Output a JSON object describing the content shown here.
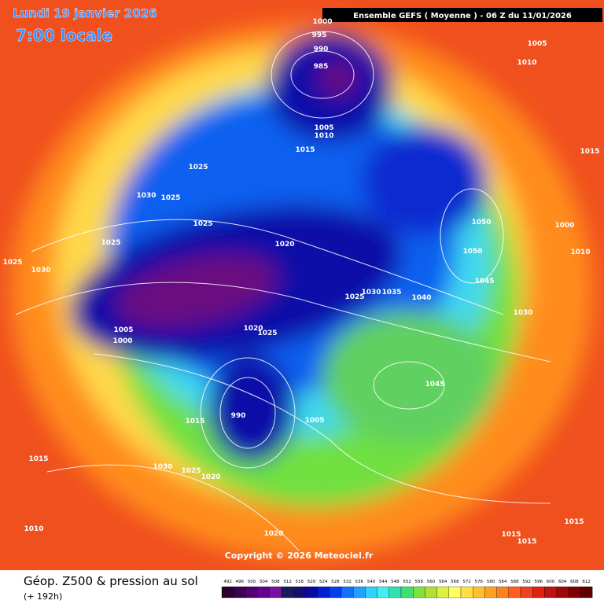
{
  "header": {
    "date": "Lundi 19 janvier 2026",
    "time": "7:00 locale",
    "model": "Ensemble GEFS  ( Moyenne )  -  06 Z du 11/01/2026"
  },
  "map": {
    "isobar_labels": [
      1000,
      995,
      990,
      985,
      1005,
      1010,
      1015,
      1025,
      1030,
      1025,
      1025,
      1025,
      1020,
      1025,
      1030,
      1005,
      1000,
      1020,
      1025,
      1030,
      1035,
      1025,
      1040,
      1050,
      1050,
      1045,
      1030,
      1000,
      1010,
      1005,
      1010,
      1015,
      990,
      1045,
      1005,
      1015,
      1015,
      1030,
      1025,
      1020,
      1010,
      1020,
      1015,
      1015,
      1015
    ]
  },
  "footer": {
    "copyright": "Copyright © 2026 Meteociel.fr",
    "title": "Géop. Z500 & pression au sol",
    "lead": "(+ 192h)"
  },
  "legend": {
    "levels": [
      492,
      496,
      500,
      504,
      508,
      512,
      516,
      520,
      524,
      528,
      532,
      536,
      540,
      544,
      548,
      552,
      556,
      560,
      564,
      568,
      572,
      576,
      580,
      584,
      588,
      592,
      596,
      600,
      604,
      608,
      612
    ],
    "colors": [
      "#2a0030",
      "#3c0050",
      "#500070",
      "#640090",
      "#7a10a0",
      "#1a1a5a",
      "#101070",
      "#0a0aa0",
      "#0020d0",
      "#0040f0",
      "#1070ff",
      "#20a0ff",
      "#30d0ff",
      "#40f0f0",
      "#30e0b0",
      "#40e070",
      "#80e040",
      "#b0e030",
      "#e0f040",
      "#ffff60",
      "#ffe040",
      "#ffc030",
      "#ffa020",
      "#ff8020",
      "#ff6020",
      "#f04020",
      "#e02010",
      "#c01010",
      "#a00808",
      "#800000",
      "#600000"
    ]
  }
}
